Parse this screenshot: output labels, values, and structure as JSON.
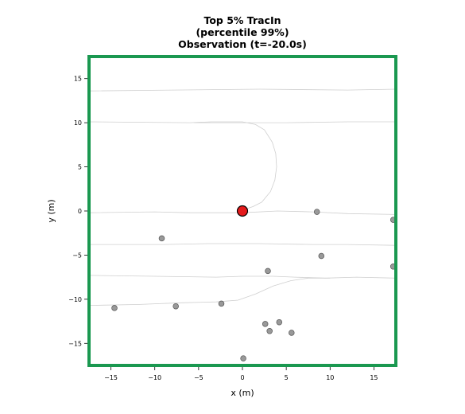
{
  "chart_data": {
    "type": "scatter",
    "title_lines": [
      "Top 5% TracIn",
      "(percentile 99%)",
      "Observation (t=-20.0s)"
    ],
    "xlabel": "x (m)",
    "ylabel": "y (m)",
    "xlim": [
      -17.5,
      17.5
    ],
    "ylim": [
      -17.5,
      17.5
    ],
    "xticks": [
      -15,
      -10,
      -5,
      0,
      5,
      10,
      15
    ],
    "yticks": [
      -15,
      -10,
      -5,
      0,
      5,
      10,
      15
    ],
    "grid": false,
    "frame_color": "#1a9850",
    "ego": {
      "x": 0,
      "y": 0,
      "color": "#e41a1c"
    },
    "agents_color": "#999999",
    "agents": [
      {
        "x": -14.6,
        "y": -11.0
      },
      {
        "x": -9.2,
        "y": -3.1
      },
      {
        "x": -7.6,
        "y": -10.8
      },
      {
        "x": -2.4,
        "y": -10.5
      },
      {
        "x": 0.1,
        "y": -16.7
      },
      {
        "x": 2.6,
        "y": -12.8
      },
      {
        "x": 2.9,
        "y": -6.8
      },
      {
        "x": 3.1,
        "y": -13.6
      },
      {
        "x": 4.2,
        "y": -12.6
      },
      {
        "x": 5.6,
        "y": -13.8
      },
      {
        "x": 8.5,
        "y": -0.1
      },
      {
        "x": 9.0,
        "y": -5.1
      },
      {
        "x": 17.2,
        "y": -1.0
      },
      {
        "x": 17.2,
        "y": -6.3
      }
    ],
    "map_lines": [
      [
        [
          -17.5,
          13.6
        ],
        [
          -8,
          13.7
        ],
        [
          2,
          13.8
        ],
        [
          12,
          13.7
        ],
        [
          17.5,
          13.8
        ]
      ],
      [
        [
          -17.5,
          10.1
        ],
        [
          -6,
          10.0
        ],
        [
          -3.5,
          10.1
        ],
        [
          0,
          10.1
        ],
        [
          1.5,
          9.8
        ],
        [
          2.5,
          9.2
        ],
        [
          3.4,
          7.8
        ],
        [
          3.8,
          6.5
        ],
        [
          3.9,
          5.0
        ],
        [
          3.7,
          3.5
        ],
        [
          3.2,
          2.2
        ],
        [
          2.2,
          1.0
        ],
        [
          1.2,
          0.5
        ],
        [
          0,
          0.1
        ]
      ],
      [
        [
          -5.5,
          10.0
        ],
        [
          5,
          10.0
        ],
        [
          12,
          10.1
        ],
        [
          17.5,
          10.1
        ]
      ],
      [
        [
          -17.5,
          -0.2
        ],
        [
          -10,
          -0.1
        ],
        [
          -6,
          -0.2
        ],
        [
          0,
          -0.2
        ],
        [
          4,
          0.0
        ],
        [
          8,
          -0.1
        ],
        [
          12,
          -0.3
        ],
        [
          17.5,
          -0.4
        ]
      ],
      [
        [
          -17.5,
          -3.8
        ],
        [
          -9,
          -3.8
        ],
        [
          -4,
          -3.7
        ],
        [
          2,
          -3.7
        ],
        [
          8,
          -3.8
        ],
        [
          12,
          -3.8
        ],
        [
          17.5,
          -3.9
        ]
      ],
      [
        [
          -17.5,
          -7.3
        ],
        [
          -10,
          -7.4
        ],
        [
          -3,
          -7.5
        ],
        [
          0,
          -7.4
        ],
        [
          3.5,
          -7.4
        ],
        [
          6,
          -7.5
        ],
        [
          9.5,
          -7.6
        ],
        [
          13,
          -7.5
        ],
        [
          17.5,
          -7.6
        ]
      ],
      [
        [
          -17.5,
          -10.7
        ],
        [
          -12,
          -10.6
        ],
        [
          -7,
          -10.4
        ],
        [
          -3,
          -10.3
        ],
        [
          -0.5,
          -10.1
        ],
        [
          1.5,
          -9.4
        ],
        [
          3.5,
          -8.5
        ],
        [
          5.5,
          -7.9
        ],
        [
          7.5,
          -7.6
        ],
        [
          10,
          -7.6
        ]
      ]
    ]
  }
}
